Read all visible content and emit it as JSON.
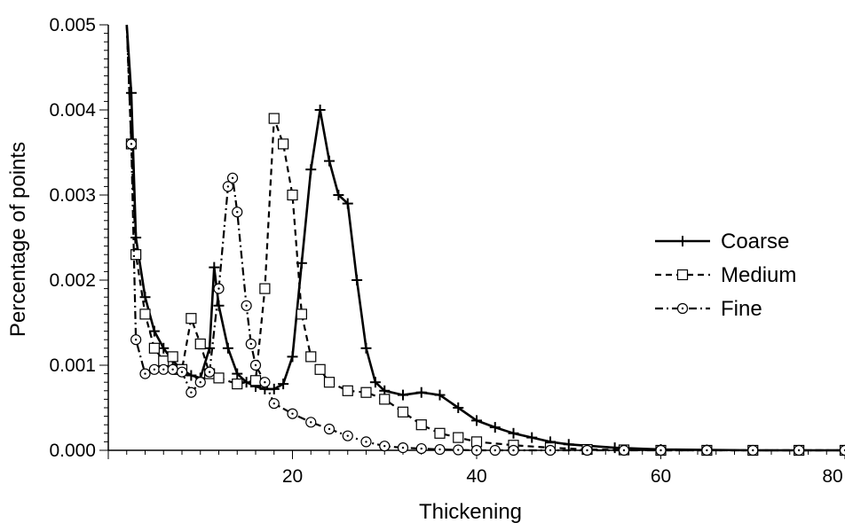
{
  "chart_data": {
    "type": "line",
    "xlabel": "Thickening",
    "ylabel": "Percentage of points",
    "xlim": [
      0,
      80
    ],
    "ylim": [
      0,
      0.005
    ],
    "x_ticks": [
      "20",
      "40",
      "60",
      "80"
    ],
    "y_ticks": [
      "0.000",
      "0.001",
      "0.002",
      "0.003",
      "0.004",
      "0.005"
    ],
    "x_tick_values": [
      20,
      40,
      60,
      80
    ],
    "y_tick_values": [
      0,
      0.001,
      0.002,
      0.003,
      0.004,
      0.005
    ],
    "grid": false,
    "legend_position": "right",
    "series": [
      {
        "name": "Coarse",
        "marker": "plus",
        "dash": "solid",
        "x": [
          2,
          2.5,
          3,
          4,
          5,
          6,
          7,
          8,
          9,
          10,
          11,
          11.5,
          12,
          13,
          14,
          15,
          16,
          17,
          18,
          19,
          20,
          21,
          22,
          23,
          24,
          25,
          26,
          27,
          28,
          29,
          30,
          32,
          34,
          36,
          38,
          40,
          42,
          44,
          46,
          48,
          50,
          55,
          60,
          65,
          70,
          75,
          80
        ],
        "y": [
          0.005,
          0.0042,
          0.0025,
          0.0018,
          0.0014,
          0.0012,
          0.00105,
          0.00095,
          0.00088,
          0.00085,
          0.0012,
          0.00215,
          0.0017,
          0.0012,
          0.0009,
          0.0008,
          0.00075,
          0.00072,
          0.00072,
          0.00078,
          0.0011,
          0.0022,
          0.0033,
          0.004,
          0.0034,
          0.003,
          0.0029,
          0.002,
          0.0012,
          0.0008,
          0.0007,
          0.00065,
          0.00068,
          0.00065,
          0.0005,
          0.00035,
          0.00027,
          0.0002,
          0.00015,
          0.0001,
          7e-05,
          3e-05,
          1e-05,
          5e-06,
          0,
          0,
          0
        ]
      },
      {
        "name": "Medium",
        "marker": "square",
        "dash": "dashed",
        "x": [
          2,
          2.5,
          3,
          4,
          5,
          6,
          7,
          7.5,
          8,
          9,
          10,
          11,
          12,
          14,
          16,
          17,
          18,
          19,
          20,
          21,
          22,
          23,
          24,
          26,
          28,
          30,
          32,
          34,
          36,
          38,
          40,
          44,
          48,
          52,
          56,
          60,
          65,
          70,
          75,
          80
        ],
        "y": [
          0.005,
          0.0036,
          0.0023,
          0.0016,
          0.0012,
          0.00105,
          0.0011,
          0.00095,
          0.00095,
          0.00155,
          0.00125,
          0.0009,
          0.00085,
          0.00078,
          0.00082,
          0.0019,
          0.0039,
          0.0036,
          0.003,
          0.0016,
          0.0011,
          0.00095,
          0.0008,
          0.0007,
          0.00068,
          0.0006,
          0.00045,
          0.0003,
          0.0002,
          0.00015,
          0.0001,
          6e-05,
          3e-05,
          1e-05,
          5e-06,
          0,
          0,
          0,
          0,
          0
        ]
      },
      {
        "name": "Fine",
        "marker": "circle",
        "dash": "dashdot",
        "x": [
          2,
          2.5,
          3,
          4,
          5,
          6,
          7,
          8,
          9,
          10,
          11,
          12,
          13,
          13.5,
          14,
          15,
          15.5,
          16,
          17,
          18,
          20,
          22,
          24,
          26,
          28,
          30,
          32,
          34,
          36,
          38,
          40,
          42,
          44,
          48,
          52,
          56,
          60,
          65,
          70,
          75,
          80
        ],
        "y": [
          0.005,
          0.0036,
          0.0013,
          0.0009,
          0.00095,
          0.00095,
          0.00095,
          0.00092,
          0.00068,
          0.0008,
          0.00092,
          0.0019,
          0.0031,
          0.0032,
          0.0028,
          0.0017,
          0.00125,
          0.001,
          0.0008,
          0.00055,
          0.00043,
          0.00033,
          0.00025,
          0.00017,
          0.0001,
          5e-05,
          3e-05,
          2e-05,
          1e-05,
          5e-06,
          0,
          0,
          0,
          0,
          0,
          0,
          0,
          0,
          0,
          0,
          0
        ]
      }
    ]
  }
}
